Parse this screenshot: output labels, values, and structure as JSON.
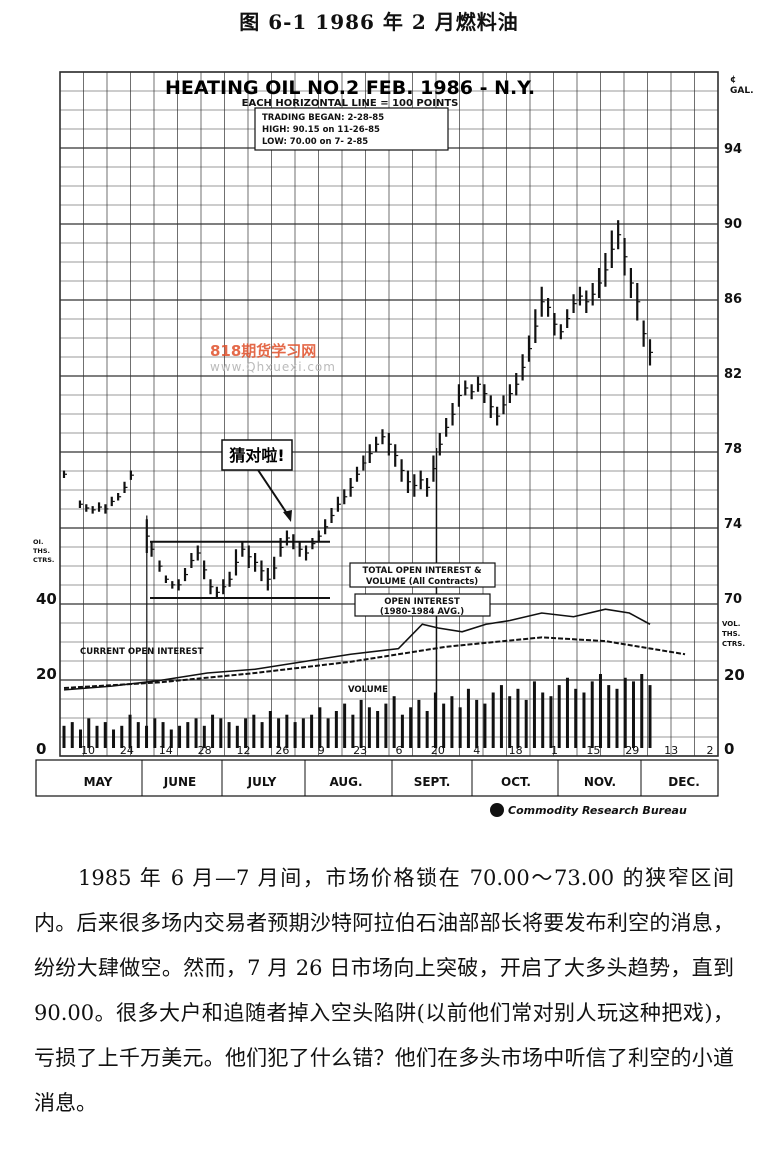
{
  "figure_title": "图 6-1   1986 年 2 月燃料油",
  "chart_data": {
    "type": "bar",
    "title": "HEATING OIL NO.2  FEB. 1986 - N.Y.",
    "subtitle": "EACH HORIZONTAL LINE = 100 POINTS",
    "info_box": [
      "TRADING BEGAN:   2-28-85",
      "HIGH:      90.15  on  11-26-85",
      "LOW:       70.00  on   7- 2-85"
    ],
    "right_axis_unit": "¢\nGAL.",
    "right_axis_ticks": [
      94,
      90,
      86,
      82,
      78,
      74,
      70
    ],
    "left_axis_label": [
      "OI.",
      "THS.",
      "CTRS."
    ],
    "left_axis_ticks": [
      40,
      20,
      0
    ],
    "right_lower_label": [
      "VOL.",
      "THS.",
      "CTRS."
    ],
    "right_lower_ticks": [
      20,
      0
    ],
    "x_ticks": [
      "10",
      "24",
      "14",
      "28",
      "12",
      "26",
      "9",
      "23",
      "6",
      "20",
      "4",
      "18",
      "1",
      "15",
      "29",
      "13",
      "2"
    ],
    "months": [
      "MAY",
      "JUNE",
      "JULY",
      "AUG.",
      "SEPT.",
      "OCT.",
      "NOV.",
      "DEC."
    ],
    "annotation_callout": "猜对啦!",
    "legend_box_1": [
      "TOTAL OPEN INTEREST &",
      "VOLUME (All Contracts)"
    ],
    "legend_box_2": [
      "OPEN INTEREST",
      "(1980-1984 AVG.)"
    ],
    "label_current_oi": "CURRENT OPEN INTEREST",
    "label_volume": "VOLUME",
    "source": "Commodity Research Bureau",
    "price_bars": [
      {
        "d": 0,
        "h": 76.8,
        "l": 76.4
      },
      {
        "d": 10,
        "h": 75.2,
        "l": 74.8
      },
      {
        "d": 14,
        "h": 75.0,
        "l": 74.6
      },
      {
        "d": 18,
        "h": 74.9,
        "l": 74.5
      },
      {
        "d": 22,
        "h": 75.1,
        "l": 74.6
      },
      {
        "d": 26,
        "h": 75.0,
        "l": 74.5
      },
      {
        "d": 30,
        "h": 75.4,
        "l": 74.9
      },
      {
        "d": 34,
        "h": 75.6,
        "l": 75.2
      },
      {
        "d": 38,
        "h": 76.2,
        "l": 75.6
      },
      {
        "d": 42,
        "h": 76.8,
        "l": 76.3
      },
      {
        "d": 52,
        "h": 74.2,
        "l": 72.4
      },
      {
        "d": 55,
        "h": 73.0,
        "l": 72.2
      },
      {
        "d": 60,
        "h": 72.0,
        "l": 71.4
      },
      {
        "d": 64,
        "h": 71.2,
        "l": 70.8
      },
      {
        "d": 68,
        "h": 70.9,
        "l": 70.5
      },
      {
        "d": 72,
        "h": 71.0,
        "l": 70.4
      },
      {
        "d": 76,
        "h": 71.6,
        "l": 70.9
      },
      {
        "d": 80,
        "h": 72.4,
        "l": 71.6
      },
      {
        "d": 84,
        "h": 72.8,
        "l": 72.0
      },
      {
        "d": 88,
        "h": 72.0,
        "l": 71.0
      },
      {
        "d": 92,
        "h": 71.0,
        "l": 70.2
      },
      {
        "d": 96,
        "h": 70.6,
        "l": 70.0
      },
      {
        "d": 100,
        "h": 71.0,
        "l": 70.2
      },
      {
        "d": 104,
        "h": 71.4,
        "l": 70.6
      },
      {
        "d": 108,
        "h": 72.6,
        "l": 71.2
      },
      {
        "d": 112,
        "h": 73.0,
        "l": 72.2
      },
      {
        "d": 116,
        "h": 72.8,
        "l": 71.6
      },
      {
        "d": 120,
        "h": 72.4,
        "l": 71.4
      },
      {
        "d": 124,
        "h": 72.0,
        "l": 70.9
      },
      {
        "d": 128,
        "h": 71.6,
        "l": 70.4
      },
      {
        "d": 132,
        "h": 72.2,
        "l": 71.0
      },
      {
        "d": 136,
        "h": 73.2,
        "l": 72.2
      },
      {
        "d": 140,
        "h": 73.6,
        "l": 72.8
      },
      {
        "d": 144,
        "h": 73.4,
        "l": 72.6
      },
      {
        "d": 148,
        "h": 73.0,
        "l": 72.2
      },
      {
        "d": 152,
        "h": 72.8,
        "l": 72.0
      },
      {
        "d": 156,
        "h": 73.2,
        "l": 72.6
      },
      {
        "d": 160,
        "h": 73.6,
        "l": 73.0
      },
      {
        "d": 164,
        "h": 74.2,
        "l": 73.4
      },
      {
        "d": 168,
        "h": 74.8,
        "l": 74.0
      },
      {
        "d": 172,
        "h": 75.4,
        "l": 74.6
      },
      {
        "d": 176,
        "h": 75.8,
        "l": 75.0
      },
      {
        "d": 180,
        "h": 76.4,
        "l": 75.4
      },
      {
        "d": 184,
        "h": 77.0,
        "l": 76.2
      },
      {
        "d": 188,
        "h": 77.6,
        "l": 76.8
      },
      {
        "d": 192,
        "h": 78.2,
        "l": 77.2
      },
      {
        "d": 196,
        "h": 78.6,
        "l": 77.8
      },
      {
        "d": 200,
        "h": 79.0,
        "l": 78.2
      },
      {
        "d": 204,
        "h": 78.8,
        "l": 77.6
      },
      {
        "d": 208,
        "h": 78.2,
        "l": 77.0
      },
      {
        "d": 212,
        "h": 77.4,
        "l": 76.2
      },
      {
        "d": 216,
        "h": 76.8,
        "l": 75.6
      },
      {
        "d": 220,
        "h": 76.6,
        "l": 75.4
      },
      {
        "d": 224,
        "h": 76.8,
        "l": 75.8
      },
      {
        "d": 228,
        "h": 76.4,
        "l": 75.4
      },
      {
        "d": 232,
        "h": 77.6,
        "l": 76.2
      },
      {
        "d": 236,
        "h": 78.8,
        "l": 77.6
      },
      {
        "d": 240,
        "h": 79.6,
        "l": 78.6
      },
      {
        "d": 244,
        "h": 80.4,
        "l": 79.2
      },
      {
        "d": 248,
        "h": 81.4,
        "l": 80.2
      },
      {
        "d": 252,
        "h": 81.6,
        "l": 80.8
      },
      {
        "d": 256,
        "h": 81.4,
        "l": 80.6
      },
      {
        "d": 260,
        "h": 81.8,
        "l": 81.0
      },
      {
        "d": 264,
        "h": 81.4,
        "l": 80.4
      },
      {
        "d": 268,
        "h": 80.8,
        "l": 79.6
      },
      {
        "d": 272,
        "h": 80.2,
        "l": 79.2
      },
      {
        "d": 276,
        "h": 80.8,
        "l": 79.8
      },
      {
        "d": 280,
        "h": 81.4,
        "l": 80.4
      },
      {
        "d": 284,
        "h": 82.0,
        "l": 80.8
      },
      {
        "d": 288,
        "h": 83.0,
        "l": 81.6
      },
      {
        "d": 292,
        "h": 84.0,
        "l": 82.6
      },
      {
        "d": 296,
        "h": 85.4,
        "l": 83.6
      },
      {
        "d": 300,
        "h": 86.6,
        "l": 85.0
      },
      {
        "d": 304,
        "h": 86.0,
        "l": 85.0
      },
      {
        "d": 308,
        "h": 85.2,
        "l": 84.0
      },
      {
        "d": 312,
        "h": 84.6,
        "l": 83.8
      },
      {
        "d": 316,
        "h": 85.4,
        "l": 84.4
      },
      {
        "d": 320,
        "h": 86.2,
        "l": 85.2
      },
      {
        "d": 324,
        "h": 86.6,
        "l": 85.6
      },
      {
        "d": 328,
        "h": 86.4,
        "l": 85.2
      },
      {
        "d": 332,
        "h": 86.8,
        "l": 85.6
      },
      {
        "d": 336,
        "h": 87.6,
        "l": 86.0
      },
      {
        "d": 340,
        "h": 88.4,
        "l": 86.6
      },
      {
        "d": 344,
        "h": 89.6,
        "l": 87.6
      },
      {
        "d": 348,
        "h": 90.15,
        "l": 88.6
      },
      {
        "d": 352,
        "h": 89.2,
        "l": 87.2
      },
      {
        "d": 356,
        "h": 87.6,
        "l": 86.0
      },
      {
        "d": 360,
        "h": 86.8,
        "l": 84.8
      },
      {
        "d": 364,
        "h": 84.8,
        "l": 83.4
      },
      {
        "d": 368,
        "h": 83.8,
        "l": 82.4
      }
    ],
    "open_interest": [
      [
        0,
        15.5
      ],
      [
        30,
        16.5
      ],
      [
        60,
        18
      ],
      [
        90,
        20
      ],
      [
        120,
        21
      ],
      [
        150,
        23
      ],
      [
        180,
        25
      ],
      [
        210,
        26.5
      ],
      [
        225,
        33
      ],
      [
        235,
        32
      ],
      [
        250,
        31
      ],
      [
        265,
        33
      ],
      [
        280,
        34
      ],
      [
        300,
        36
      ],
      [
        320,
        35
      ],
      [
        340,
        37
      ],
      [
        355,
        36
      ],
      [
        368,
        33
      ]
    ],
    "avg_open_interest": [
      [
        0,
        16
      ],
      [
        60,
        17.5
      ],
      [
        120,
        20
      ],
      [
        180,
        23
      ],
      [
        240,
        27
      ],
      [
        300,
        29.5
      ],
      [
        340,
        28.5
      ],
      [
        390,
        25
      ]
    ],
    "volume": [
      6,
      7,
      5,
      8,
      6,
      7,
      5,
      6,
      9,
      7,
      6,
      8,
      7,
      5,
      6,
      7,
      8,
      6,
      9,
      8,
      7,
      6,
      8,
      9,
      7,
      10,
      8,
      9,
      7,
      8,
      9,
      11,
      8,
      10,
      12,
      9,
      13,
      11,
      10,
      12,
      14,
      9,
      11,
      13,
      10,
      15,
      12,
      14,
      11,
      16,
      13,
      12,
      15,
      17,
      14,
      16,
      13,
      18,
      15,
      14,
      17,
      19,
      16,
      15,
      18,
      20,
      17,
      16,
      19,
      18,
      20,
      17
    ]
  },
  "watermark": "818期货学习网",
  "watermark_url": "www.Qhxuexi.com",
  "caption_text": "1985 年 6 月—7 月间，市场价格锁在 70.00～73.00 的狭窄区间内。后来很多场内交易者预期沙特阿拉伯石油部部长将要发布利空的消息，纷纷大肆做空。然而，7 月 26 日市场向上突破，开启了大多头趋势，直到 90.00。很多大户和追随者掉入空头陷阱(以前他们常对别人玩这种把戏)，亏损了上千万美元。他们犯了什么错？他们在多头市场中听信了利空的小道消息。"
}
